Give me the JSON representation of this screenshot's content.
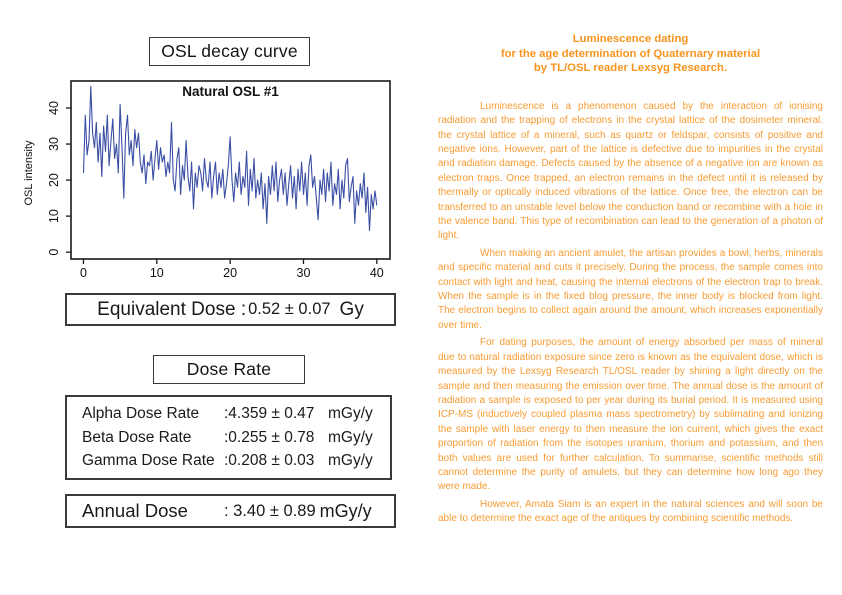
{
  "accent": {
    "line_blue": "#3b4fa5",
    "title_orange": "#f7941e",
    "body_orange": "#f79c33",
    "box_border": "#3a3a3a"
  },
  "left": {
    "decay_title": "OSL decay curve",
    "equivalent_dose": {
      "label": "Equivalent Dose :",
      "value": "0.52 ± 0.07",
      "unit": "Gy"
    },
    "dose_rate_title": "Dose Rate",
    "dose_rates": [
      {
        "label": "Alpha Dose Rate",
        "value": ":4.359 ± 0.47",
        "unit": "mGy/y"
      },
      {
        "label": "Beta Dose Rate",
        "value": ":0.255 ± 0.78",
        "unit": "mGy/y"
      },
      {
        "label": "Gamma Dose Rate",
        "value": ":0.208 ± 0.03",
        "unit": "mGy/y"
      }
    ],
    "annual_dose": {
      "label": "Annual Dose",
      "value": ": 3.40 ± 0.89",
      "unit": "mGy/y"
    }
  },
  "chart_data": {
    "type": "line",
    "title": "Natural OSL #1",
    "xlabel": "",
    "ylabel": "OSL intensity",
    "x_ticks": [
      0,
      10,
      20,
      30,
      40
    ],
    "y_ticks": [
      0,
      10,
      20,
      30,
      40
    ],
    "xlim": [
      -1.7,
      41.8
    ],
    "ylim": [
      -1.9,
      47.5
    ],
    "grid": false,
    "legend": "none",
    "line_color": "#3b4fa5",
    "x_start": 0,
    "x_step": 0.25,
    "values": [
      22,
      38,
      27,
      31,
      46,
      33,
      29,
      36,
      25,
      33,
      21,
      35,
      28,
      38,
      24,
      31,
      37,
      26,
      30,
      22,
      41,
      29,
      15,
      33,
      38,
      27,
      31,
      24,
      34,
      29,
      33,
      25,
      22,
      27,
      19,
      25,
      24,
      28,
      20,
      26,
      31,
      23,
      29,
      25,
      27,
      21,
      25,
      22,
      36,
      20,
      17,
      26,
      29,
      16,
      24,
      20,
      31,
      21,
      17,
      25,
      12,
      22,
      18,
      24,
      22,
      17,
      26,
      20,
      18,
      25,
      15,
      21,
      25,
      16,
      22,
      18,
      23,
      15,
      19,
      24,
      32,
      20,
      14,
      22,
      18,
      25,
      16,
      21,
      18,
      28,
      13,
      23,
      17,
      26,
      15,
      20,
      16,
      22,
      12,
      19,
      8,
      21,
      16,
      24,
      17,
      25,
      14,
      20,
      23,
      16,
      22,
      13,
      19,
      24,
      15,
      21,
      12,
      23,
      17,
      25,
      16,
      22,
      13,
      24,
      27,
      18,
      21,
      15,
      9,
      20,
      16,
      23,
      14,
      22,
      17,
      25,
      13,
      19,
      16,
      23,
      12,
      20,
      15,
      24,
      26,
      14,
      18,
      21,
      8,
      17,
      13,
      19,
      15,
      22,
      11,
      18,
      6,
      16,
      12,
      17,
      13
    ]
  },
  "article": {
    "title_lines": [
      "Luminescence dating",
      "for the age determination of Quaternary material",
      "by TL/OSL reader Lexsyg Research."
    ],
    "paragraphs": [
      "Luminescence is a phenomenon caused by the interaction of ionising radiation and the trapping of electrons in the crystal lattice of the dosimeter mineral. the crystal lattice of a mineral, such as quartz or feldspar, consists of positive and negative ions. However, part of the lattice is defective due to impurities in the crystal and radiation damage. Defects caused by the absence of a negative ion are known as electron traps. Once trapped, an electron remains in the defect until it is released by thermally or optically induced vibrations of the lattice. Once free, the electron can be transferred to an unstable level below the conduction band or recombine with a hole in the valence band. This type of recombination can lead to the generation of a photon of light.",
      "When making an ancient amulet, the artisan provides a bowl, herbs, minerals and specific material and cuts it precisely. During the process, the sample comes into contact with light and heat, causing the internal electrons of the electron trap to break. When the sample is in the fixed blog pressure, the inner body is blocked from light. The electron begins to collect again around the amount, which increases exponentially over time.",
      "For dating purposes, the amount of energy absorbed per mass of mineral due to natural radiation exposure since zero is known as the equivalent dose, which is measured by the Lexsyg Research TL/OSL reader by shining a light directly on the sample and then measuring the emission over time. The annual dose is the amount of radiation a sample is exposed to per year during its burial period. It is measured using ICP-MS (inductively coupled plasma mass spectrometry) by sublimating and ionizing the sample with laser energy to then measure the ion current, which gives the exact proportion of radiation from the isotopes uranium, thorium and potassium, and then both values are used for further calculation. To summarise, scientific methods still cannot determine the purity of amulets, but they can determine how long ago they were made.",
      "However, Amata Siam is an expert in the natural sciences and will soon be able to determine the exact age of the antiques by combining scientific methods."
    ]
  }
}
